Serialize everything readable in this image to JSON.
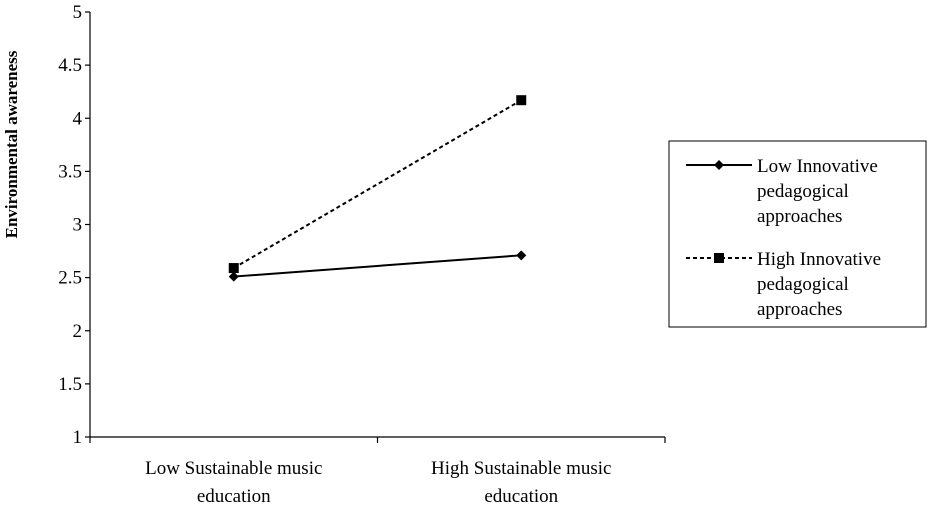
{
  "chart_data": {
    "type": "line",
    "title": "",
    "xlabel": "",
    "ylabel": "Environmental awareness",
    "ylim": [
      1,
      5
    ],
    "yticks": [
      "1",
      "1.5",
      "2",
      "2.5",
      "3",
      "3.5",
      "4",
      "4.5",
      "5"
    ],
    "categories": [
      [
        "Low Sustainable music",
        "education"
      ],
      [
        "High Sustainable music",
        "education"
      ]
    ],
    "grid": false,
    "legend_position": "right",
    "series": [
      {
        "name": [
          "Low Innovative",
          "pedagogical",
          "approaches"
        ],
        "values": [
          2.51,
          2.71
        ],
        "line_style": "solid",
        "marker": "diamond",
        "color": "#000000"
      },
      {
        "name": [
          "High Innovative",
          "pedagogical",
          "approaches"
        ],
        "values": [
          2.59,
          4.17
        ],
        "line_style": "dashed",
        "marker": "square",
        "color": "#000000"
      }
    ]
  }
}
